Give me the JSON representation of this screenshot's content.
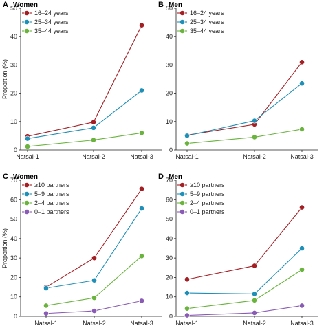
{
  "shared": {
    "ylabel": "Proportion (%)",
    "categories": [
      "Natsal-1",
      "Natsal-2",
      "Natsal-3"
    ]
  },
  "chart_data": [
    {
      "type": "line",
      "panel": "A",
      "title": "Women",
      "categories": [
        "Natsal-1",
        "Natsal-2",
        "Natsal-3"
      ],
      "ylim": [
        0,
        50
      ],
      "yticks": [
        0,
        10,
        20,
        30,
        40,
        50
      ],
      "legend_position": "top-left",
      "series": [
        {
          "name": "16–24 years",
          "color": "#a31f24",
          "values": [
            4.8,
            9.8,
            44
          ]
        },
        {
          "name": "25–34 years",
          "color": "#1e8fb6",
          "values": [
            4.0,
            7.8,
            21
          ]
        },
        {
          "name": "35–44 years",
          "color": "#6ab43e",
          "values": [
            1.2,
            3.5,
            6.0
          ]
        }
      ]
    },
    {
      "type": "line",
      "panel": "B",
      "title": "Men",
      "categories": [
        "Natsal-1",
        "Natsal-2",
        "Natsal-3"
      ],
      "ylim": [
        0,
        50
      ],
      "yticks": [
        0,
        10,
        20,
        30,
        40,
        50
      ],
      "legend_position": "top-left",
      "series": [
        {
          "name": "16–24 years",
          "color": "#a31f24",
          "values": [
            5.2,
            9.0,
            31
          ]
        },
        {
          "name": "25–34 years",
          "color": "#1e8fb6",
          "values": [
            5.0,
            10.3,
            23.5
          ]
        },
        {
          "name": "35–44 years",
          "color": "#6ab43e",
          "values": [
            2.3,
            4.5,
            7.3
          ]
        }
      ]
    },
    {
      "type": "line",
      "panel": "C",
      "title": "Women",
      "categories": [
        "Natsal-1",
        "Natsal-2",
        "Natsal-3"
      ],
      "ylim": [
        0,
        70
      ],
      "yticks": [
        0,
        10,
        20,
        30,
        40,
        50,
        60,
        70
      ],
      "legend_position": "top-left",
      "series": [
        {
          "name": "≥10 partners",
          "color": "#a31f24",
          "values": [
            15,
            30,
            65.5
          ]
        },
        {
          "name": "5–9 partners",
          "color": "#1e8fb6",
          "values": [
            14.5,
            18.5,
            55.5
          ]
        },
        {
          "name": "2–4 partners",
          "color": "#6ab43e",
          "values": [
            5.5,
            9.5,
            31
          ]
        },
        {
          "name": "0–1 partners",
          "color": "#8a5bb5",
          "values": [
            1.5,
            2.8,
            8.0
          ]
        }
      ]
    },
    {
      "type": "line",
      "panel": "D",
      "title": "Men",
      "categories": [
        "Natsal-1",
        "Natsal-2",
        "Natsal-3"
      ],
      "ylim": [
        0,
        70
      ],
      "yticks": [
        0,
        10,
        20,
        30,
        40,
        50,
        60,
        70
      ],
      "legend_position": "top-left",
      "series": [
        {
          "name": "≥10 partners",
          "color": "#a31f24",
          "values": [
            19,
            26,
            56
          ]
        },
        {
          "name": "5–9 partners",
          "color": "#1e8fb6",
          "values": [
            12,
            11.5,
            35
          ]
        },
        {
          "name": "2–4 partners",
          "color": "#6ab43e",
          "values": [
            4.0,
            8.2,
            24
          ]
        },
        {
          "name": "0–1 partners",
          "color": "#8a5bb5",
          "values": [
            0.5,
            1.8,
            5.5
          ]
        }
      ]
    }
  ]
}
